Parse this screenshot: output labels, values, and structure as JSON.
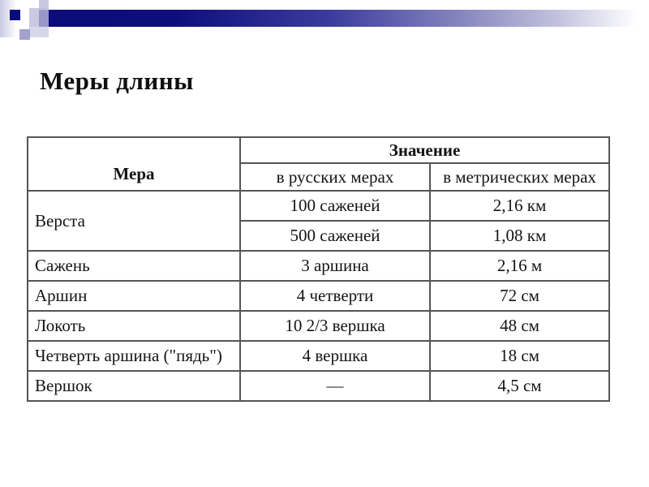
{
  "page": {
    "title": "Меры длины"
  },
  "decor": {
    "navy_color": "#0c0c7c",
    "lavender_color": "#c9c9e3",
    "bar_gradient": [
      "#0c0c7c",
      "#8989c0",
      "#ffffff"
    ]
  },
  "table": {
    "headers": {
      "measure": "Мера",
      "value": "Значение",
      "russian": "в русских мерах",
      "metric": "в метрических мерах"
    },
    "rows": [
      {
        "measure": "Верста",
        "russian": "100 саженей",
        "metric": "2,16 км"
      },
      {
        "russian": "500 саженей",
        "metric": "1,08 км"
      },
      {
        "measure": "Сажень",
        "russian": "3 аршина",
        "metric": "2,16 м"
      },
      {
        "measure": "Аршин",
        "russian": "4 четверти",
        "metric": "72 см"
      },
      {
        "measure": "Локоть",
        "russian": "10 2/3 вершка",
        "metric": "48 см"
      },
      {
        "measure": "Четверть аршина (\"пядь\")",
        "russian": "4 вершка",
        "metric": "18 см"
      },
      {
        "measure": "Вершок",
        "russian": "—",
        "metric": "4,5 см"
      }
    ]
  }
}
